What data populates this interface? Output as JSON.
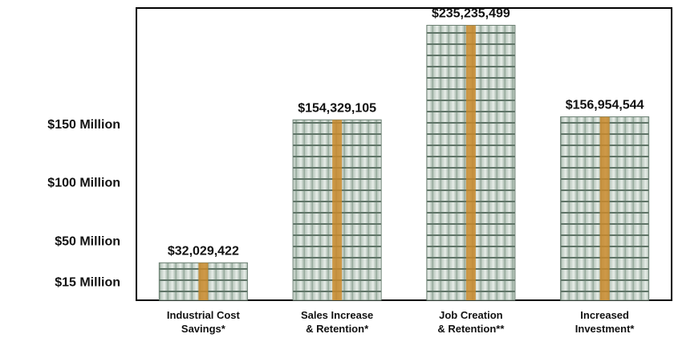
{
  "chart_data": {
    "type": "bar",
    "categories": [
      "Industrial Cost\nSavings*",
      "Sales Increase\n& Retention*",
      "Job Creation\n& Retention**",
      "Increased\nInvestment*"
    ],
    "values": [
      32029422,
      154329105,
      235235499,
      156954544
    ],
    "value_labels": [
      "$32,029,422",
      "$154,329,105",
      "$235,235,499",
      "$156,954,544"
    ],
    "color": "#7f9a8c",
    "ylim": [
      0,
      250000000
    ],
    "yticks": [
      {
        "value": 15000000,
        "label": "$15 Million"
      },
      {
        "value": 50000000,
        "label": "$50 Million"
      },
      {
        "value": 100000000,
        "label": "$100 Million"
      },
      {
        "value": 150000000,
        "label": "$150 Million"
      }
    ]
  }
}
